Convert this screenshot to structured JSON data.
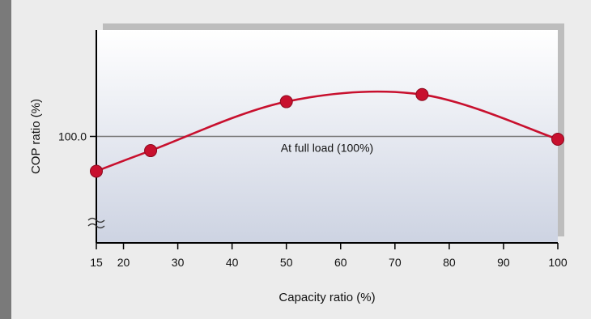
{
  "chart_data": {
    "type": "line",
    "title": "",
    "xlabel": "Capacity ratio (%)",
    "ylabel": "COP ratio (%)",
    "x_ticks": [
      15,
      20,
      30,
      40,
      50,
      60,
      70,
      80,
      90,
      100
    ],
    "y_ticks": [
      "100.0"
    ],
    "xlim": [
      15,
      100
    ],
    "ylim": [
      85,
      115
    ],
    "grid": false,
    "reference_line": {
      "y": 100,
      "label": "At full load (100%)"
    },
    "axis_break": "y",
    "series": [
      {
        "color": "#c8102e",
        "x": [
          15,
          25,
          50,
          75,
          100
        ],
        "y": [
          95.1,
          98.0,
          104.9,
          105.9,
          99.6
        ]
      }
    ]
  }
}
